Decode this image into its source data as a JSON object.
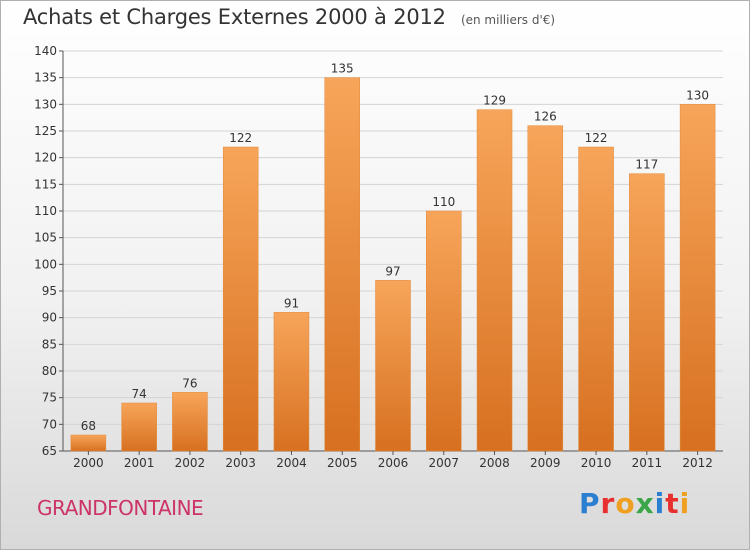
{
  "title": "Achats et Charges Externes 2000 à 2012",
  "subtitle": "(en milliers d'€)",
  "commune": "GRANDFONTAINE",
  "logo": {
    "text": "Proxiti",
    "colors": [
      "#2a7fd0",
      "#e8302e",
      "#f0a020",
      "#3aa648",
      "#2a7fd0",
      "#e8302e",
      "#f0a020"
    ]
  },
  "colors": {
    "bar_top": "#f7a55a",
    "bar_bottom": "#d77020",
    "commune": "#cc3366"
  },
  "chart_data": {
    "type": "bar",
    "categories": [
      "2000",
      "2001",
      "2002",
      "2003",
      "2004",
      "2005",
      "2006",
      "2007",
      "2008",
      "2009",
      "2010",
      "2011",
      "2012"
    ],
    "values": [
      68,
      74,
      76,
      122,
      91,
      135,
      97,
      110,
      129,
      126,
      122,
      117,
      130
    ],
    "ylim": [
      65,
      140
    ],
    "yticks": [
      65,
      70,
      75,
      80,
      85,
      90,
      95,
      100,
      105,
      110,
      115,
      120,
      125,
      130,
      135,
      140
    ],
    "grid": true
  }
}
